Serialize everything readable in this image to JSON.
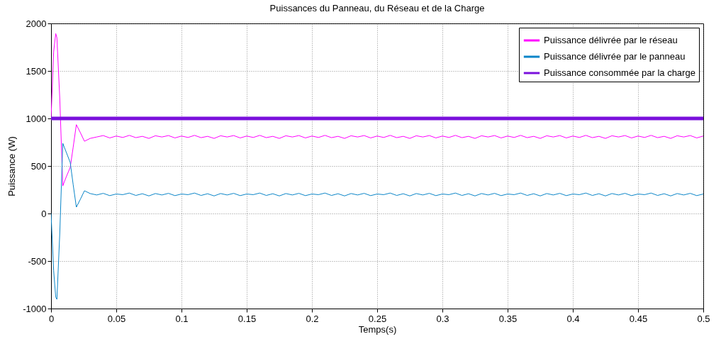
{
  "chart_data": {
    "type": "line",
    "title": "Puissances du Panneau, du Réseau et de la Charge",
    "xlabel": "Temps(s)",
    "ylabel": "Puissance (W)",
    "x": [
      0,
      0.002,
      0.0036,
      0.0045,
      0.0067,
      0.009,
      0.0115,
      0.0147,
      0.017,
      0.0194,
      0.0225,
      0.0256,
      0.03,
      0.035,
      0.04,
      0.045,
      0.05,
      0.055,
      0.06,
      0.065,
      0.07,
      0.075,
      0.08,
      0.085,
      0.09,
      0.095,
      0.1,
      0.105,
      0.11,
      0.115,
      0.12,
      0.125,
      0.13,
      0.135,
      0.14,
      0.145,
      0.15,
      0.155,
      0.16,
      0.165,
      0.17,
      0.175,
      0.18,
      0.185,
      0.19,
      0.195,
      0.2,
      0.205,
      0.21,
      0.215,
      0.22,
      0.225,
      0.23,
      0.235,
      0.24,
      0.245,
      0.25,
      0.255,
      0.26,
      0.265,
      0.27,
      0.275,
      0.28,
      0.285,
      0.29,
      0.295,
      0.3,
      0.305,
      0.31,
      0.315,
      0.32,
      0.325,
      0.33,
      0.335,
      0.34,
      0.345,
      0.35,
      0.355,
      0.36,
      0.365,
      0.37,
      0.375,
      0.38,
      0.385,
      0.39,
      0.395,
      0.4,
      0.405,
      0.41,
      0.415,
      0.42,
      0.425,
      0.43,
      0.435,
      0.44,
      0.445,
      0.45,
      0.455,
      0.46,
      0.465,
      0.47,
      0.475,
      0.48,
      0.485,
      0.49,
      0.495,
      0.5
    ],
    "series": [
      {
        "name": "Puissance délivrée par le réseau",
        "color": "#ff00ff",
        "values": [
          1000,
          1700,
          1893,
          1850,
          1209,
          290,
          380,
          485,
          700,
          935,
          850,
          760,
          790,
          805,
          820,
          795,
          815,
          800,
          822,
          798,
          812,
          790,
          818,
          805,
          820,
          795,
          815,
          800,
          822,
          798,
          812,
          790,
          818,
          805,
          820,
          795,
          815,
          800,
          822,
          798,
          812,
          790,
          818,
          805,
          820,
          795,
          815,
          800,
          822,
          798,
          812,
          790,
          818,
          805,
          820,
          795,
          815,
          800,
          822,
          798,
          812,
          790,
          818,
          805,
          820,
          795,
          815,
          800,
          822,
          798,
          812,
          790,
          818,
          805,
          820,
          795,
          815,
          800,
          822,
          798,
          812,
          790,
          818,
          805,
          820,
          795,
          815,
          800,
          822,
          798,
          812,
          790,
          818,
          805,
          820,
          795,
          815,
          800,
          822,
          798,
          812,
          790,
          818,
          805,
          820,
          795,
          815
        ]
      },
      {
        "name": "Puissance délivrée par le panneau",
        "color": "#0a85c8",
        "values": [
          0,
          -600,
          -880,
          -903,
          -209,
          739,
          650,
          537,
          300,
          67,
          150,
          239,
          210,
          195,
          212,
          188,
          205,
          198,
          215,
          190,
          208,
          185,
          210,
          195,
          212,
          188,
          205,
          198,
          215,
          190,
          208,
          185,
          210,
          195,
          212,
          188,
          205,
          198,
          215,
          190,
          208,
          185,
          210,
          195,
          212,
          188,
          205,
          198,
          215,
          190,
          208,
          185,
          210,
          195,
          212,
          188,
          205,
          198,
          215,
          190,
          208,
          185,
          210,
          195,
          212,
          188,
          205,
          198,
          215,
          190,
          208,
          185,
          210,
          195,
          212,
          188,
          205,
          198,
          215,
          190,
          208,
          185,
          210,
          195,
          212,
          188,
          205,
          198,
          215,
          190,
          208,
          185,
          210,
          195,
          212,
          188,
          205,
          198,
          215,
          190,
          208,
          185,
          210,
          195,
          212,
          188,
          205
        ]
      },
      {
        "name": "Puissance consommée par la charge",
        "color": "#7a10dc",
        "x": [
          0,
          0.5
        ],
        "values": [
          1000,
          1000
        ]
      }
    ],
    "xlim": [
      0,
      0.5
    ],
    "xticks": [
      0,
      0.05,
      0.1,
      0.15,
      0.2,
      0.25,
      0.3,
      0.35,
      0.4,
      0.45,
      0.5
    ],
    "ylim": [
      -1000,
      2000
    ],
    "yticks": [
      -1000,
      -500,
      0,
      500,
      1000,
      1500,
      2000
    ],
    "grid": true,
    "legend": "top right",
    "line_style": "solid",
    "marker": "none"
  }
}
